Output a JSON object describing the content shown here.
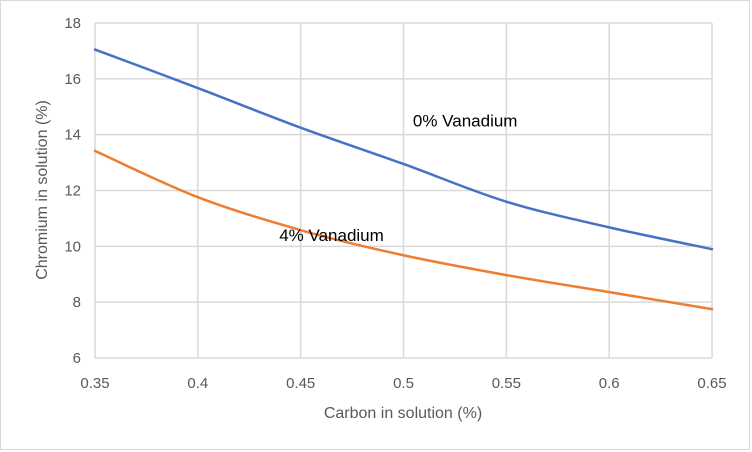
{
  "chart_data": {
    "type": "line",
    "title": "",
    "xlabel": "Carbon in solution (%)",
    "ylabel": "Chromium in solution (%)",
    "xlim": [
      0.35,
      0.65
    ],
    "ylim": [
      6,
      18
    ],
    "x_ticks": [
      "0.35",
      "0.4",
      "0.45",
      "0.5",
      "0.55",
      "0.6",
      "0.65"
    ],
    "y_ticks": [
      "6",
      "8",
      "10",
      "12",
      "14",
      "16",
      "18"
    ],
    "grid": true,
    "legend": "none",
    "x": [
      0.35,
      0.4,
      0.45,
      0.5,
      0.55,
      0.6,
      0.65
    ],
    "series": [
      {
        "name": "0% Vanadium",
        "color": "#4472c4",
        "values": [
          17.05,
          15.67,
          14.25,
          12.95,
          11.6,
          10.68,
          9.9
        ]
      },
      {
        "name": "4% Vanadium",
        "color": "#ed7d31",
        "values": [
          13.42,
          11.76,
          10.58,
          9.68,
          8.97,
          8.36,
          7.75
        ]
      }
    ],
    "annotations": [
      {
        "text": "0% Vanadium",
        "x": 0.53,
        "y": 14.3,
        "series": 0
      },
      {
        "text": "4% Vanadium",
        "x": 0.465,
        "y": 10.2,
        "series": 1
      }
    ]
  }
}
